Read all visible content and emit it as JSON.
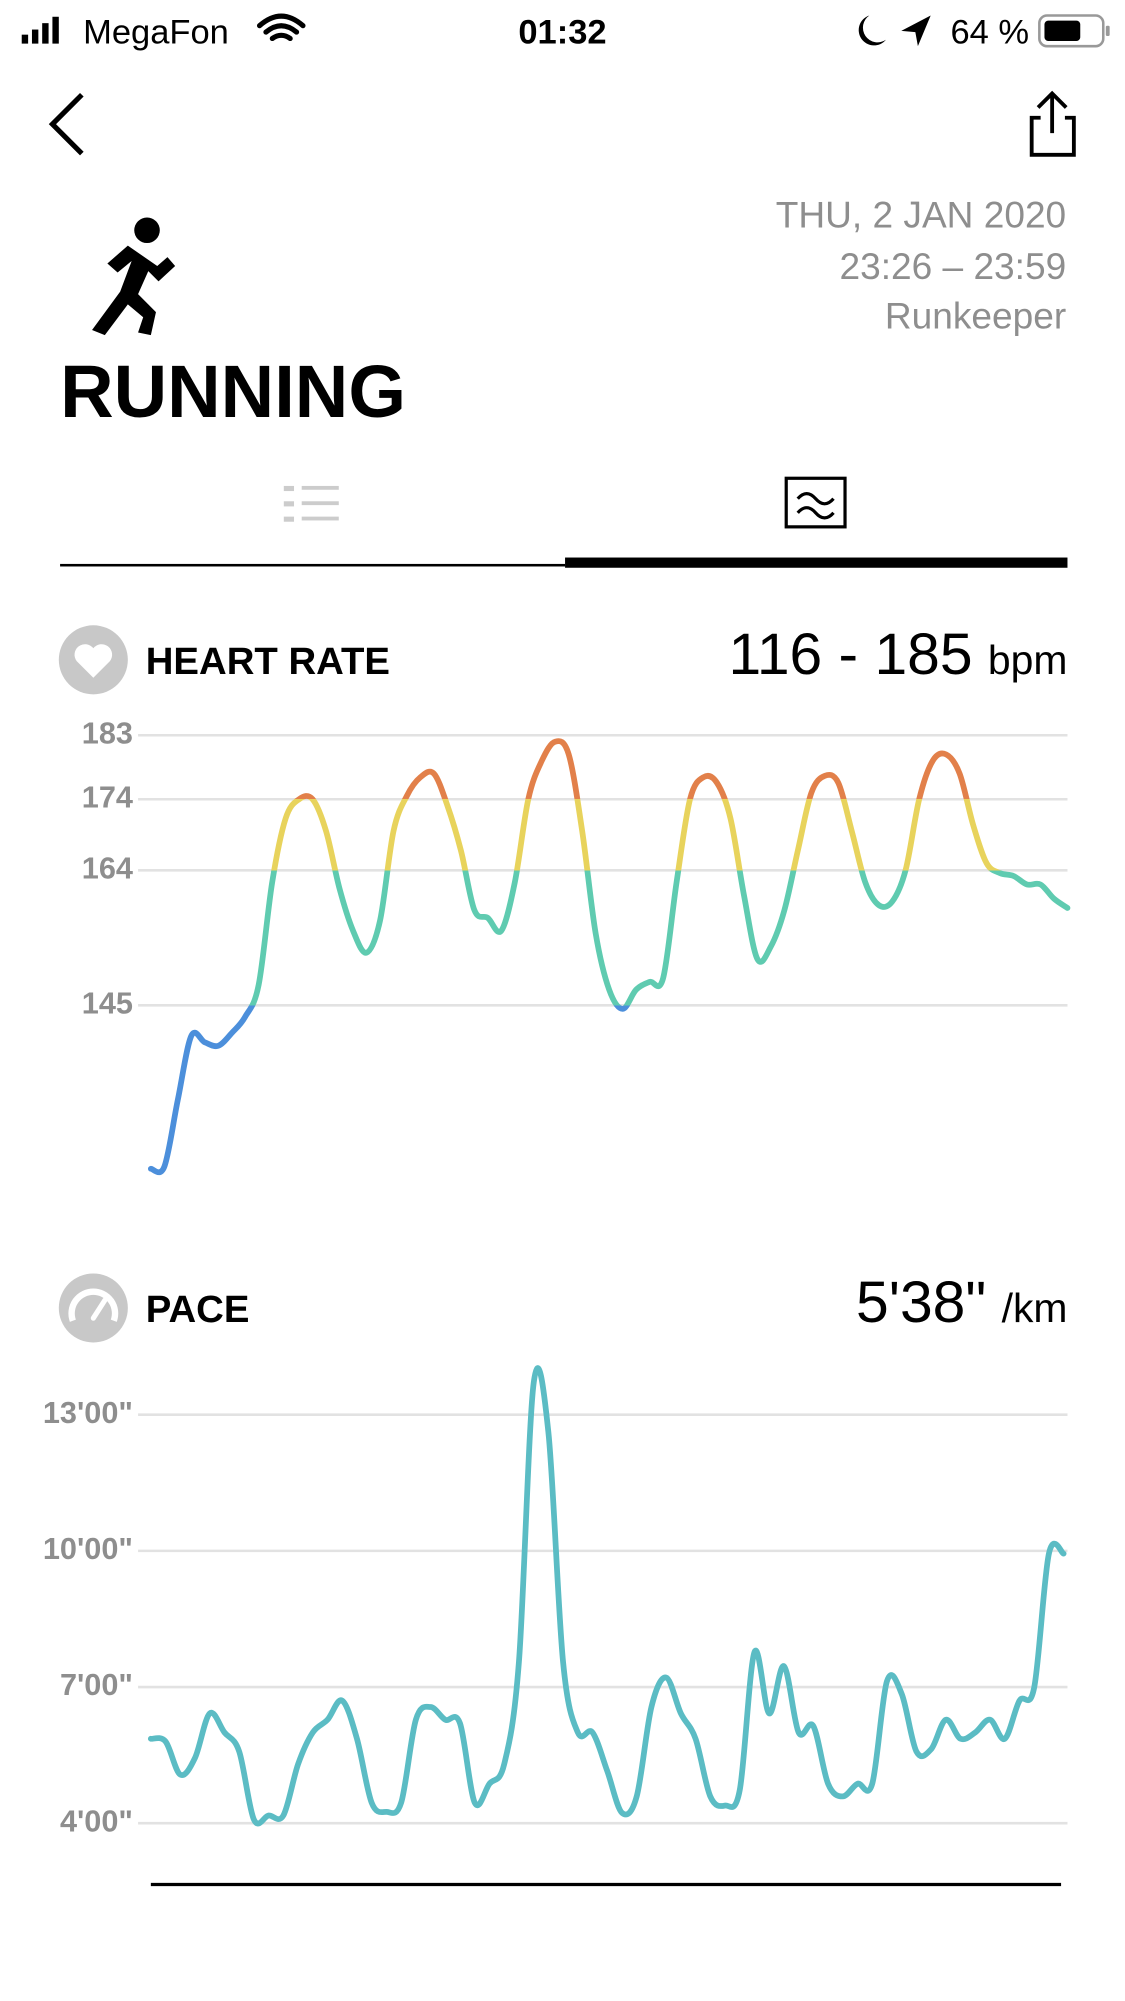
{
  "status_bar": {
    "carrier": "MegaFon",
    "time": "01:32",
    "battery": "64 %"
  },
  "header": {
    "date": "THU, 2 JAN 2020",
    "time_range": "23:26 – 23:59",
    "source": "Runkeeper",
    "title": "RUNNING"
  },
  "chart_data": [
    {
      "type": "line",
      "title": "HEART RATE",
      "summary": "116 - 185",
      "unit": "bpm",
      "ylim": [
        116,
        185
      ],
      "yticks": [
        183,
        174,
        164,
        145
      ],
      "grid": true,
      "zones": [
        {
          "min": 174,
          "color": "#e2804a"
        },
        {
          "min": 164,
          "color": "#e8d35c"
        },
        {
          "min": 145,
          "color": "#5fcbb0"
        },
        {
          "color": "#4c8fdb"
        }
      ],
      "values": [
        122,
        122.3,
        131.7,
        140.7,
        139.8,
        139.3,
        141.1,
        143.4,
        147.9,
        162.3,
        171.3,
        174,
        174,
        169.5,
        161.4,
        155.5,
        152.4,
        156.9,
        169.5,
        174.5,
        177.1,
        177.6,
        173.1,
        166.8,
        158.4,
        157.3,
        155.5,
        162.3,
        174,
        179.4,
        182.1,
        180.3,
        169.5,
        155.1,
        147.2,
        144.5,
        147.2,
        148.3,
        148.8,
        162.3,
        174,
        177.1,
        176.3,
        171.3,
        160.5,
        151.5,
        153.3,
        158.4,
        166.8,
        174.9,
        177.3,
        176.3,
        169.5,
        162.3,
        159.1,
        159.6,
        164.1,
        174,
        179.4,
        180.3,
        177.6,
        170.4,
        165,
        163.6,
        163.2,
        162,
        162,
        160,
        158.7
      ]
    },
    {
      "type": "line",
      "title": "PACE",
      "summary": "5'38\"",
      "unit": "/km",
      "color": "#5bbcc4",
      "ylim": [
        2.7,
        14
      ],
      "yticks": [
        {
          "value": 13,
          "label": "13'00\""
        },
        {
          "value": 10,
          "label": "10'00\""
        },
        {
          "value": 7,
          "label": "7'00\""
        },
        {
          "value": 4,
          "label": "4'00\""
        }
      ],
      "grid": true,
      "values": [
        5.86,
        5.8,
        5.07,
        5.44,
        6.42,
        6.0,
        5.58,
        4.08,
        4.17,
        4.17,
        5.3,
        6.0,
        6.28,
        6.7,
        5.86,
        4.45,
        4.25,
        4.45,
        6.28,
        6.56,
        6.28,
        6.2,
        4.45,
        4.87,
        5.3,
        7.55,
        13.69,
        12.62,
        7.55,
        6.0,
        6.0,
        5.15,
        4.23,
        4.59,
        6.56,
        7.21,
        6.42,
        5.86,
        4.59,
        4.39,
        4.73,
        7.77,
        6.42,
        7.46,
        6.0,
        6.14,
        4.87,
        4.59,
        4.87,
        4.87,
        7.13,
        6.85,
        5.58,
        5.63,
        6.28,
        5.86,
        6.0,
        6.28,
        5.86,
        6.7,
        6.99,
        9.94,
        9.94
      ]
    }
  ]
}
